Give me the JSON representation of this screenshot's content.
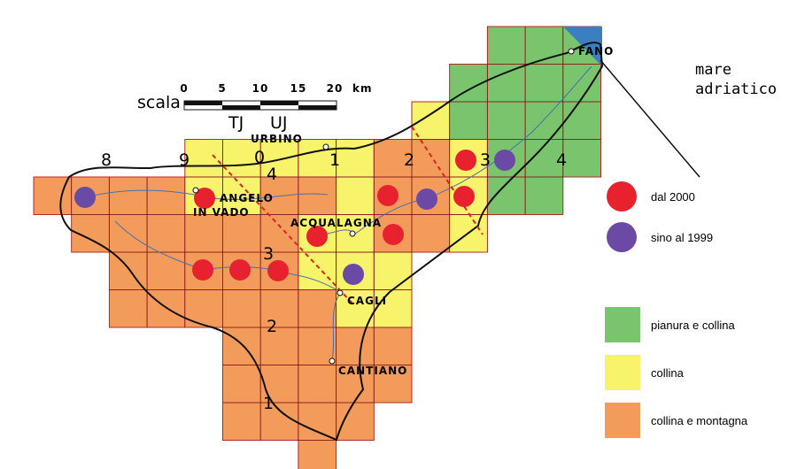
{
  "scale": {
    "label": "scala",
    "ticks": [
      "0",
      "5",
      "10",
      "15",
      "20"
    ],
    "unit": "km"
  },
  "zones": [
    "TJ",
    "UJ"
  ],
  "grid_labels": {
    "columns": [
      "8",
      "9",
      "0",
      "1",
      "2",
      "3",
      "4"
    ],
    "rows": [
      "4",
      "3",
      "2",
      "1"
    ]
  },
  "places": [
    "URBINO",
    "ANGELO",
    "IN VADO",
    "ACQUALAGNA",
    "CAGLI",
    "CANTIANO",
    "FANO"
  ],
  "sea": [
    "mare",
    "adriatico"
  ],
  "legend": {
    "points": [
      "dal 2000",
      "sino al 1999"
    ],
    "areas": [
      "pianura e collina",
      "collina",
      "collina e montagna"
    ]
  }
}
